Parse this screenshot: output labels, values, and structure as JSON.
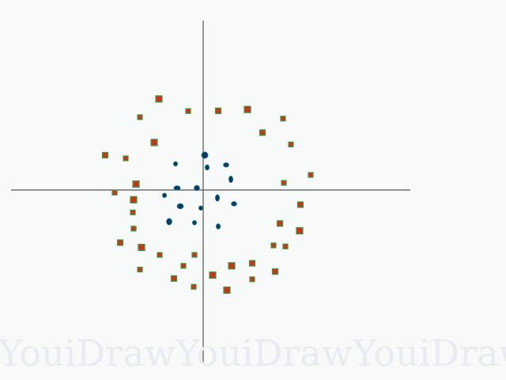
{
  "watermark": [
    "YouiDraw",
    "YouiDraw",
    "YouiDraw"
  ],
  "colors": {
    "background": "#f8f9f9",
    "axis": "#555555",
    "outer_fill": "#c8341c",
    "outer_edge": "#3f9a3f",
    "inner_fill": "#0a3a66",
    "inner_edge": "#1a7a7a",
    "watermark": "#e9ecee"
  },
  "chart_data": {
    "type": "scatter",
    "title": "",
    "xlabel": "",
    "ylabel": "",
    "grid": false,
    "legend": "none",
    "xlim": [
      -10,
      10
    ],
    "ylim": [
      -9,
      9
    ],
    "series": [
      {
        "marker": "square",
        "points": [
          {
            "x": -2.24,
            "y": 4.6
          },
          {
            "x": -3.2,
            "y": 3.68
          },
          {
            "x": -0.76,
            "y": 3.99
          },
          {
            "x": 0.76,
            "y": 4.0
          },
          {
            "x": 2.24,
            "y": 4.07
          },
          {
            "x": 4.04,
            "y": 3.61
          },
          {
            "x": 3.0,
            "y": 2.9
          },
          {
            "x": 4.44,
            "y": 2.3
          },
          {
            "x": -2.48,
            "y": 2.4
          },
          {
            "x": -4.96,
            "y": 1.76
          },
          {
            "x": -3.92,
            "y": 1.6
          },
          {
            "x": 5.44,
            "y": 0.76
          },
          {
            "x": -3.4,
            "y": 0.3
          },
          {
            "x": 4.08,
            "y": 0.36
          },
          {
            "x": -4.48,
            "y": -0.13
          },
          {
            "x": 4.92,
            "y": -0.74
          },
          {
            "x": -3.52,
            "y": -0.49
          },
          {
            "x": -3.56,
            "y": -1.13
          },
          {
            "x": 3.88,
            "y": -1.69
          },
          {
            "x": -3.52,
            "y": -1.95
          },
          {
            "x": 4.88,
            "y": -2.06
          },
          {
            "x": -4.2,
            "y": -2.66
          },
          {
            "x": 3.56,
            "y": -2.8
          },
          {
            "x": 4.16,
            "y": -2.85
          },
          {
            "x": -3.12,
            "y": -2.9
          },
          {
            "x": -2.2,
            "y": -3.28
          },
          {
            "x": -0.44,
            "y": -3.28
          },
          {
            "x": 2.48,
            "y": -3.7
          },
          {
            "x": 1.44,
            "y": -3.83
          },
          {
            "x": -1.0,
            "y": -3.83
          },
          {
            "x": 3.64,
            "y": -4.12
          },
          {
            "x": -3.2,
            "y": -4.02
          },
          {
            "x": 0.48,
            "y": -4.3
          },
          {
            "x": -1.48,
            "y": -4.47
          },
          {
            "x": 2.48,
            "y": -4.51
          },
          {
            "x": -0.48,
            "y": -4.89
          },
          {
            "x": 1.2,
            "y": -5.06
          }
        ]
      },
      {
        "marker": "ellipse",
        "points": [
          {
            "x": 0.08,
            "y": 1.76
          },
          {
            "x": -1.4,
            "y": 1.32
          },
          {
            "x": 0.2,
            "y": 1.14
          },
          {
            "x": 1.16,
            "y": 1.27
          },
          {
            "x": 1.4,
            "y": 0.54
          },
          {
            "x": -1.32,
            "y": 0.1
          },
          {
            "x": -0.32,
            "y": 0.1
          },
          {
            "x": -1.96,
            "y": -0.27
          },
          {
            "x": 0.72,
            "y": -0.4
          },
          {
            "x": 1.56,
            "y": -0.7
          },
          {
            "x": -1.16,
            "y": -0.82
          },
          {
            "x": -0.12,
            "y": -0.91
          },
          {
            "x": -1.72,
            "y": -1.6
          },
          {
            "x": -0.44,
            "y": -1.65
          },
          {
            "x": 0.76,
            "y": -1.84
          }
        ]
      }
    ]
  }
}
